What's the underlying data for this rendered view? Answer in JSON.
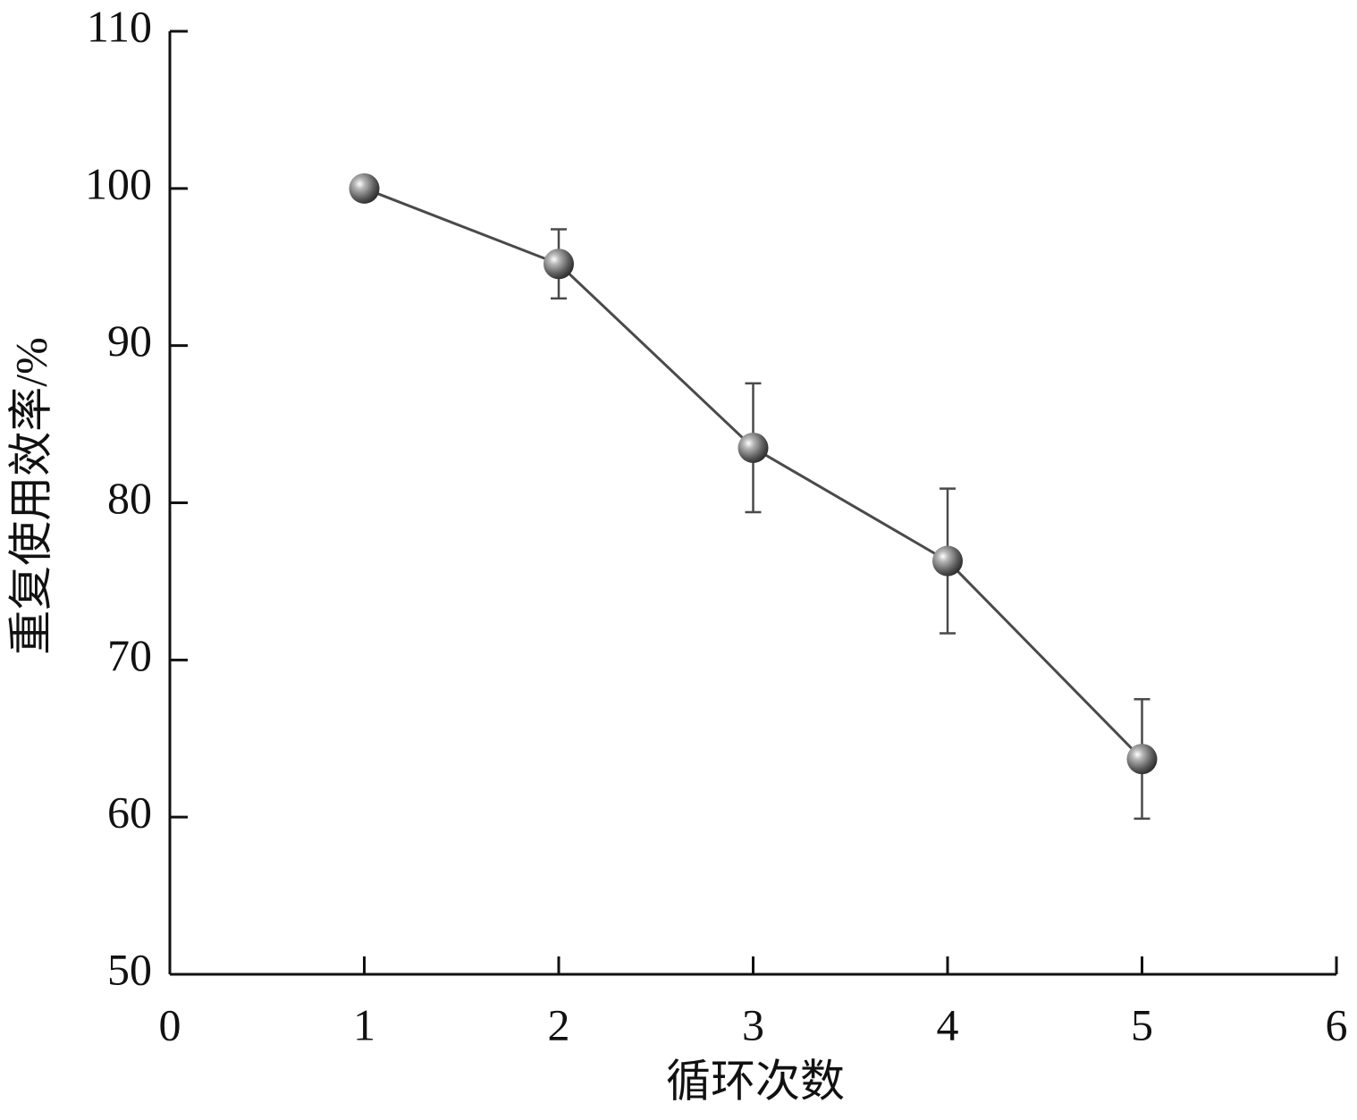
{
  "chart_data": {
    "type": "line",
    "x_label": "循环次数",
    "y_label": "重复使用效率/%",
    "x": [
      1,
      2,
      3,
      4,
      5
    ],
    "series": [
      {
        "color": "#4a4a4a",
        "values": [
          100,
          95.2,
          83.5,
          76.3,
          63.7
        ],
        "errors": [
          0,
          2.2,
          4.1,
          4.6,
          3.8
        ]
      }
    ],
    "xlim": [
      0,
      6
    ],
    "xticks": [
      0,
      1,
      2,
      3,
      4,
      5,
      6
    ],
    "ylim": [
      50,
      110
    ],
    "yticks": [
      50,
      60,
      70,
      80,
      90,
      100,
      110
    ]
  }
}
